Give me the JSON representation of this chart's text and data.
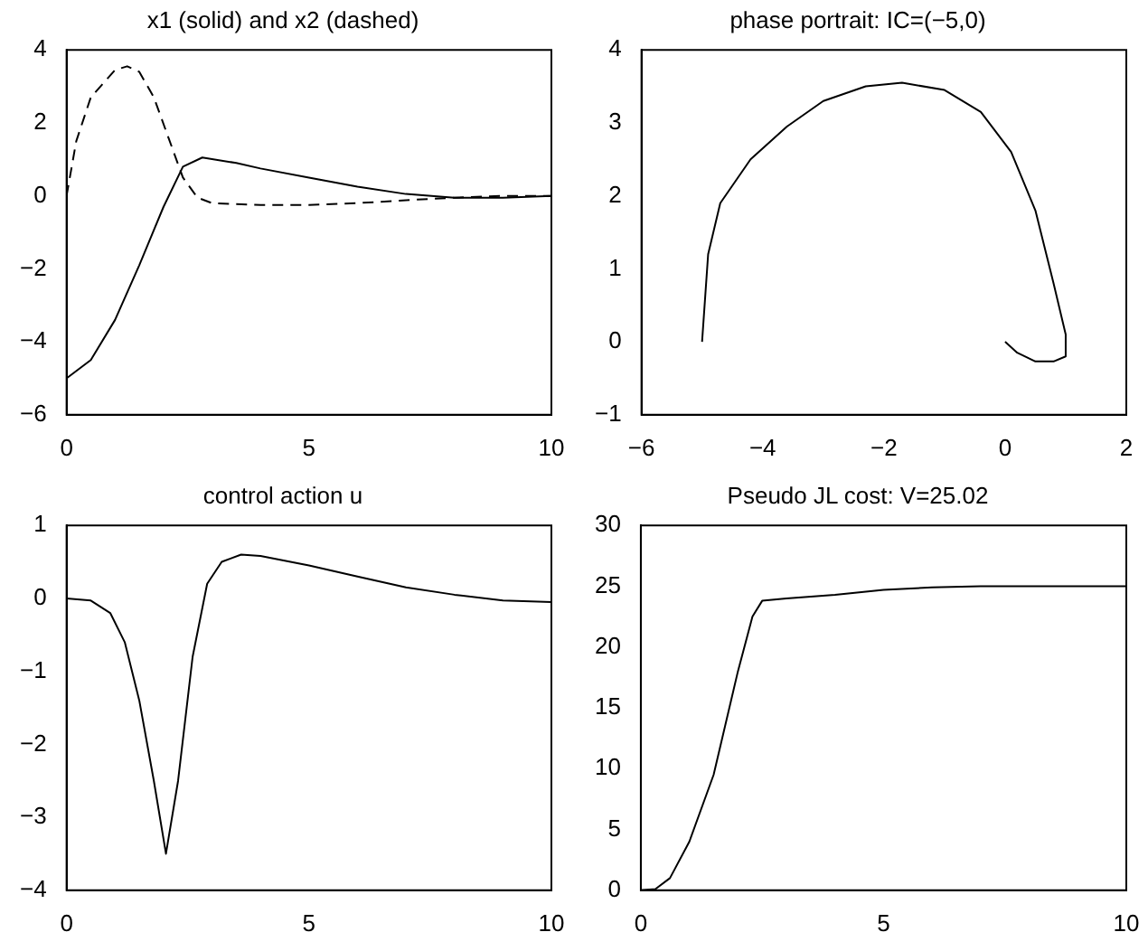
{
  "chart_data": [
    {
      "type": "line",
      "title": "x1 (solid) and x2 (dashed)",
      "xlim": [
        0,
        10
      ],
      "xticks": [
        0,
        5,
        10
      ],
      "ylim": [
        -6,
        4
      ],
      "yticks": [
        -6,
        -4,
        -2,
        0,
        2,
        4
      ],
      "series": [
        {
          "color": "#000000",
          "line_style": "solid",
          "x": [
            0,
            0.5,
            1,
            1.5,
            2,
            2.4,
            2.8,
            3.5,
            4,
            5,
            6,
            7,
            8,
            9,
            10
          ],
          "values": [
            -5,
            -4.5,
            -3.4,
            -1.9,
            -0.3,
            0.8,
            1.05,
            0.9,
            0.75,
            0.5,
            0.25,
            0.05,
            -0.05,
            -0.05,
            0
          ]
        },
        {
          "color": "#000000",
          "line_style": "dashed",
          "x": [
            0,
            0.2,
            0.5,
            1,
            1.25,
            1.5,
            1.8,
            2.1,
            2.4,
            2.7,
            3,
            4,
            5,
            6,
            7,
            8,
            9,
            10
          ],
          "values": [
            0,
            1.5,
            2.7,
            3.45,
            3.55,
            3.4,
            2.7,
            1.6,
            0.5,
            -0.05,
            -0.2,
            -0.25,
            -0.25,
            -0.2,
            -0.12,
            -0.05,
            0,
            0
          ]
        }
      ]
    },
    {
      "type": "line",
      "title": "phase portrait: IC=(−5,0)",
      "xlim": [
        -6,
        2
      ],
      "xticks": [
        -6,
        -4,
        -2,
        0,
        2
      ],
      "ylim": [
        -1,
        4
      ],
      "yticks": [
        -1,
        0,
        1,
        2,
        3,
        4
      ],
      "series": [
        {
          "color": "#000000",
          "x": [
            -5,
            -4.9,
            -4.7,
            -4.2,
            -3.6,
            -3,
            -2.3,
            -1.7,
            -1,
            -0.4,
            0.1,
            0.5,
            0.8,
            1,
            1,
            0.8,
            0.5,
            0.2,
            0
          ],
          "values": [
            0,
            1.2,
            1.9,
            2.5,
            2.95,
            3.3,
            3.5,
            3.55,
            3.45,
            3.15,
            2.6,
            1.8,
            0.8,
            0.1,
            -0.2,
            -0.27,
            -0.27,
            -0.15,
            0
          ]
        }
      ]
    },
    {
      "type": "line",
      "title": "control action u",
      "xlim": [
        0,
        10
      ],
      "xticks": [
        0,
        5,
        10
      ],
      "ylim": [
        -4,
        1
      ],
      "yticks": [
        -4,
        -3,
        -2,
        -1,
        0,
        1
      ],
      "series": [
        {
          "color": "#000000",
          "x": [
            0,
            0.5,
            0.9,
            1.2,
            1.5,
            1.8,
            2.05,
            2.3,
            2.6,
            2.9,
            3.2,
            3.6,
            4,
            5,
            6,
            7,
            8,
            9,
            10
          ],
          "values": [
            0,
            -0.03,
            -0.2,
            -0.6,
            -1.4,
            -2.5,
            -3.5,
            -2.5,
            -0.8,
            0.2,
            0.5,
            0.6,
            0.58,
            0.45,
            0.3,
            0.15,
            0.05,
            -0.03,
            -0.05
          ]
        }
      ]
    },
    {
      "type": "line",
      "title": "Pseudo JL cost: V=25.02",
      "xlim": [
        0,
        10
      ],
      "xticks": [
        0,
        5,
        10
      ],
      "ylim": [
        0,
        30
      ],
      "yticks": [
        0,
        5,
        10,
        15,
        20,
        25,
        30
      ],
      "series": [
        {
          "color": "#000000",
          "x": [
            0,
            0.3,
            0.6,
            1,
            1.5,
            2,
            2.3,
            2.5,
            3,
            4,
            5,
            6,
            7,
            10
          ],
          "values": [
            0,
            0.1,
            1,
            4,
            9.5,
            18,
            22.5,
            23.8,
            24,
            24.3,
            24.7,
            24.9,
            25,
            25
          ]
        }
      ]
    }
  ]
}
